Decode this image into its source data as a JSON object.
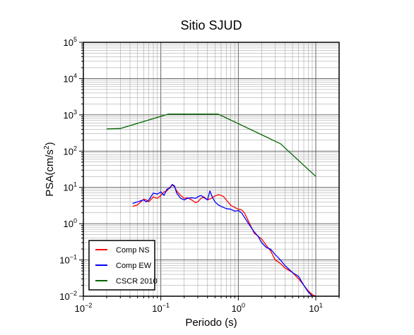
{
  "chart_data": {
    "type": "line",
    "title": "Sitio SJUD",
    "xlabel": "Periodo (s)",
    "ylabel": {
      "base": "PSA(cm/s",
      "sup": "2",
      "close": ")"
    },
    "x_scale": "log",
    "y_scale": "log",
    "xlim": [
      0.01,
      20
    ],
    "ylim": [
      0.01,
      100000
    ],
    "grid": true,
    "legend_position": "bottom-left",
    "x_ticks": [
      {
        "base": "10",
        "exp": "−2"
      },
      {
        "base": "10",
        "exp": "−1"
      },
      {
        "base": "10",
        "exp": "0"
      },
      {
        "base": "10",
        "exp": "1"
      }
    ],
    "y_ticks": [
      {
        "base": "10",
        "exp": "−2"
      },
      {
        "base": "10",
        "exp": "−1"
      },
      {
        "base": "10",
        "exp": "0"
      },
      {
        "base": "10",
        "exp": "1"
      },
      {
        "base": "10",
        "exp": "2"
      },
      {
        "base": "10",
        "exp": "3"
      },
      {
        "base": "10",
        "exp": "4"
      },
      {
        "base": "10",
        "exp": "5"
      }
    ],
    "series": [
      {
        "name": "Comp NS",
        "color": "#ff0000",
        "x": [
          0.043,
          0.05,
          0.055,
          0.06,
          0.065,
          0.07,
          0.08,
          0.09,
          0.1,
          0.11,
          0.12,
          0.13,
          0.14,
          0.15,
          0.16,
          0.18,
          0.2,
          0.22,
          0.25,
          0.28,
          0.3,
          0.33,
          0.36,
          0.4,
          0.45,
          0.5,
          0.55,
          0.6,
          0.65,
          0.7,
          0.8,
          0.9,
          1.0,
          1.1,
          1.2,
          1.4,
          1.6,
          1.8,
          2.0,
          2.3,
          2.6,
          3.0,
          3.5,
          4.0,
          5.0,
          6.0,
          7.0,
          8.0,
          9.0,
          10.0
        ],
        "y": [
          3.0,
          3.3,
          4.0,
          4.7,
          4.5,
          4.0,
          5.5,
          5.0,
          6.0,
          7.5,
          8.0,
          10.0,
          11.5,
          10.5,
          8.0,
          6.0,
          5.0,
          5.2,
          4.5,
          3.8,
          4.0,
          5.0,
          5.5,
          4.5,
          5.0,
          5.8,
          6.3,
          6.0,
          5.5,
          4.5,
          3.2,
          2.8,
          2.5,
          2.4,
          2.0,
          1.0,
          0.55,
          0.45,
          0.38,
          0.25,
          0.18,
          0.1,
          0.08,
          0.06,
          0.045,
          0.03,
          0.02,
          0.014,
          0.011,
          0.01
        ]
      },
      {
        "name": "Comp EW",
        "color": "#0000ff",
        "x": [
          0.043,
          0.05,
          0.055,
          0.06,
          0.065,
          0.07,
          0.08,
          0.09,
          0.1,
          0.11,
          0.12,
          0.13,
          0.14,
          0.15,
          0.16,
          0.18,
          0.2,
          0.22,
          0.25,
          0.28,
          0.3,
          0.33,
          0.36,
          0.4,
          0.43,
          0.46,
          0.5,
          0.55,
          0.6,
          0.7,
          0.8,
          0.9,
          1.0,
          1.1,
          1.2,
          1.4,
          1.6,
          1.8,
          2.0,
          2.3,
          2.6,
          3.0,
          3.5,
          4.0,
          5.0,
          6.0,
          7.0,
          8.0,
          9.0,
          10.0
        ],
        "y": [
          3.6,
          4.0,
          4.3,
          4.5,
          4.0,
          4.5,
          7.0,
          6.5,
          7.5,
          6.0,
          9.0,
          9.5,
          12.0,
          11.0,
          7.0,
          5.0,
          4.5,
          5.0,
          5.2,
          5.0,
          5.5,
          6.0,
          5.2,
          4.5,
          8.0,
          5.5,
          4.0,
          3.3,
          3.0,
          2.6,
          2.5,
          2.2,
          2.3,
          2.0,
          1.5,
          0.9,
          0.6,
          0.45,
          0.3,
          0.22,
          0.2,
          0.14,
          0.1,
          0.07,
          0.045,
          0.035,
          0.02,
          0.013,
          0.01,
          0.01
        ]
      },
      {
        "name": "CSCR 2010",
        "color": "#006400",
        "x": [
          0.02,
          0.03,
          0.125,
          0.55,
          3.5,
          10.0
        ],
        "y": [
          410,
          420,
          1050,
          1050,
          160,
          20
        ]
      }
    ]
  }
}
